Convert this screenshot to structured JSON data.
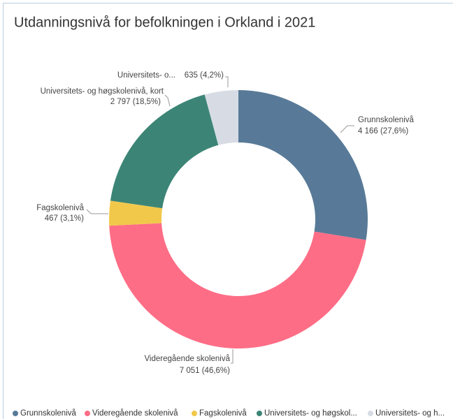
{
  "chart_data": {
    "type": "donut",
    "title": "Utdanningsnivå for befolkningen i Orkland i 2021",
    "categories": [
      "Grunnskolenivå",
      "Videregående skolenivå",
      "Fagskolenivå",
      "Universitets- og høgskolenivå, kort",
      "Universitets- o..."
    ],
    "values": [
      4166,
      7051,
      467,
      2797,
      635
    ],
    "value_labels": [
      "4 166 (27,6%)",
      "7 051 (46,6%)",
      "467 (3,1%)",
      "2 797 (18,5%)",
      "635 (4,2%)"
    ],
    "colors": [
      "#587a98",
      "#fe6d86",
      "#f2c84b",
      "#3c8576",
      "#d7dce4"
    ],
    "legend_labels": [
      "Grunnskolenivå",
      "Videregående skolenivå",
      "Fagskolenivå",
      "Universitets- og høgskol...",
      "Universitets- og h..."
    ]
  }
}
